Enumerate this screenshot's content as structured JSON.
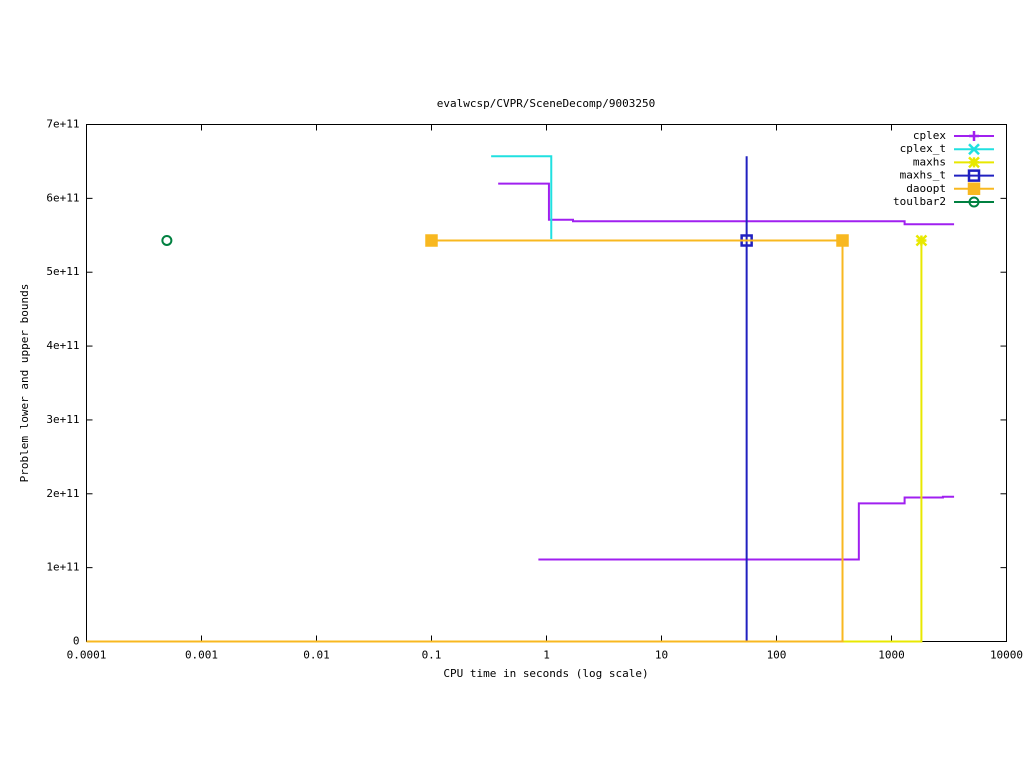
{
  "chart_data": {
    "type": "line",
    "title": "evalwcsp/CVPR/SceneDecomp/9003250",
    "x_label": "CPU time in seconds (log scale)",
    "y_label": "Problem lower and upper bounds",
    "x_log": true,
    "xlim": [
      0.0001,
      10000
    ],
    "xticks": [
      0.0001,
      0.001,
      0.01,
      0.1,
      1,
      10,
      100,
      1000,
      10000
    ],
    "ylim": [
      0,
      700000000000
    ],
    "yticks": [
      0,
      {
        "value": 100000000000,
        "label": "1e+11"
      },
      {
        "value": 200000000000,
        "label": "2e+11"
      },
      {
        "value": 300000000000,
        "label": "3e+11"
      },
      {
        "value": 400000000000,
        "label": "4e+11"
      },
      {
        "value": 500000000000,
        "label": "5e+11"
      },
      {
        "value": 600000000000,
        "label": "6e+11"
      },
      {
        "value": 700000000000,
        "label": "7e+11"
      }
    ],
    "legend": "top-right",
    "series": [
      {
        "name": "cplex",
        "color": "#a020f0",
        "marker": "plus",
        "x": [
          0.38,
          1.05,
          1.05,
          1.7,
          1.7,
          1300,
          1300,
          3500,
          null,
          0.85,
          520,
          520,
          1300,
          1300,
          2800,
          2800,
          3500
        ],
        "y": [
          620000000000,
          620000000000,
          571000000000,
          571000000000,
          569000000000,
          569000000000,
          565000000000,
          565000000000,
          null,
          111000000000,
          111000000000,
          187000000000,
          187000000000,
          195000000000,
          195000000000,
          196000000000,
          196000000000
        ],
        "marker_x": [],
        "marker_y": []
      },
      {
        "name": "cplex_t",
        "color": "#20e0e0",
        "marker": "cross",
        "x": [
          0.33,
          1.1,
          1.1
        ],
        "y": [
          657000000000,
          657000000000,
          545000000000
        ],
        "marker_x": [],
        "marker_y": []
      },
      {
        "name": "maxhs",
        "color": "#e8e800",
        "marker": "star",
        "x": [
          0.0001,
          1820,
          1820
        ],
        "y": [
          0,
          0,
          543000000000
        ],
        "marker_x": [
          1820
        ],
        "marker_y": [
          543000000000
        ]
      },
      {
        "name": "maxhs_t",
        "color": "#2020c0",
        "marker": "square",
        "x": [
          0.0001,
          55,
          55
        ],
        "y": [
          0,
          0,
          657000000000
        ],
        "marker_x": [
          55
        ],
        "marker_y": [
          543000000000
        ]
      },
      {
        "name": "daoopt",
        "color": "#f8b820",
        "marker": "filled-square",
        "x": [
          0.1,
          375,
          null,
          0.0001,
          375,
          375
        ],
        "y": [
          543000000000,
          543000000000,
          null,
          0,
          0,
          543000000000
        ],
        "marker_x": [
          0.1,
          375
        ],
        "marker_y": [
          543000000000,
          543000000000
        ]
      },
      {
        "name": "toulbar2",
        "color": "#008040",
        "marker": "circle",
        "x": [],
        "y": [],
        "marker_x": [
          0.0005
        ],
        "marker_y": [
          543000000000
        ]
      }
    ]
  }
}
